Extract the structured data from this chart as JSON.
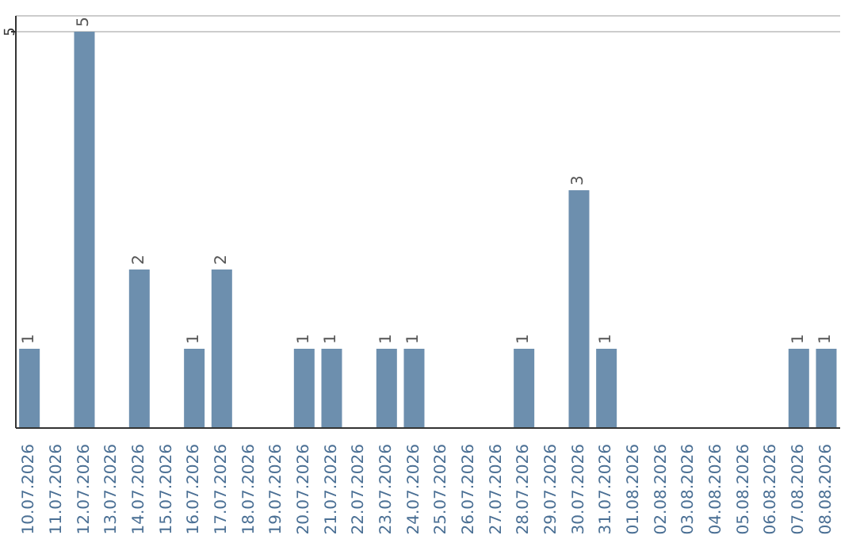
{
  "chart_data": {
    "type": "bar",
    "categories": [
      "10.07.2026",
      "11.07.2026",
      "12.07.2026",
      "13.07.2026",
      "14.07.2026",
      "15.07.2026",
      "16.07.2026",
      "17.07.2026",
      "18.07.2026",
      "19.07.2026",
      "20.07.2026",
      "21.07.2026",
      "22.07.2026",
      "23.07.2026",
      "24.07.2026",
      "25.07.2026",
      "26.07.2026",
      "27.07.2026",
      "28.07.2026",
      "29.07.2026",
      "30.07.2026",
      "31.07.2026",
      "01.08.2026",
      "02.08.2026",
      "03.08.2026",
      "04.08.2026",
      "05.08.2026",
      "06.08.2026",
      "07.08.2026",
      "08.08.2026"
    ],
    "values": [
      1,
      0,
      5,
      0,
      2,
      0,
      1,
      2,
      0,
      0,
      1,
      1,
      0,
      1,
      1,
      0,
      0,
      0,
      1,
      0,
      3,
      1,
      0,
      0,
      0,
      0,
      0,
      0,
      1,
      1
    ],
    "value_labels": [
      "1",
      null,
      "5",
      null,
      "2",
      null,
      "1",
      "2",
      null,
      null,
      "1",
      "1",
      null,
      "1",
      "1",
      null,
      null,
      null,
      "1",
      null,
      "3",
      "1",
      null,
      null,
      null,
      null,
      null,
      null,
      "1",
      "1"
    ],
    "color": "#6d8fae",
    "ylim": [
      0,
      5.2
    ],
    "yticks": [
      5
    ],
    "grid": "y"
  }
}
